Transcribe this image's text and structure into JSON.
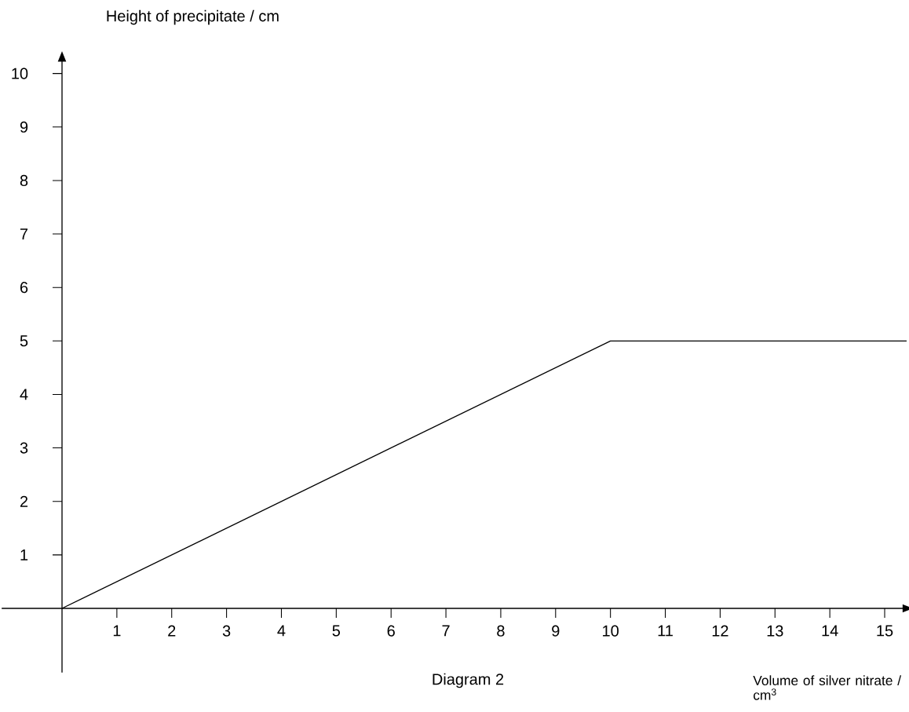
{
  "chart_data": {
    "type": "line",
    "xlabel": "Volume of  silver nitrate / cm$^{3}$",
    "ylabel": "Height of  precipitate / cm",
    "annotations": [
      {
        "text": "Diagram 2"
      }
    ],
    "x": [
      0,
      10,
      15.4
    ],
    "values": [
      0,
      5,
      5
    ],
    "color": "#000000",
    "line_style": "solid",
    "xlim": [
      -1.1,
      15.4
    ],
    "ylim": [
      -1.2,
      10.3
    ],
    "xticks": [
      1,
      2,
      3,
      4,
      5,
      6,
      7,
      8,
      9,
      10,
      11,
      12,
      13,
      14,
      15
    ],
    "yticks": [
      1,
      2,
      3,
      4,
      5,
      6,
      7,
      8,
      9,
      10
    ]
  }
}
